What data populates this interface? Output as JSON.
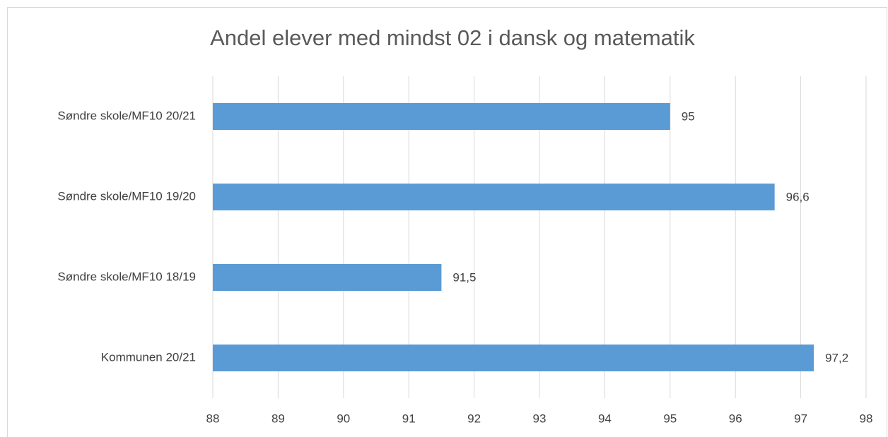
{
  "chart_data": {
    "type": "bar",
    "orientation": "horizontal",
    "title": "Andel elever med mindst 02 i dansk og matematik",
    "categories": [
      "Søndre skole/MF10 20/21",
      "Søndre skole/MF10 19/20",
      "Søndre skole/MF10 18/19",
      "Kommunen 20/21"
    ],
    "values": [
      95,
      96.6,
      91.5,
      97.2
    ],
    "value_labels": [
      "95",
      "96,6",
      "91,5",
      "97,2"
    ],
    "color": "#5b9bd5",
    "xlim": [
      88,
      98
    ],
    "xticks": [
      88,
      89,
      90,
      91,
      92,
      93,
      94,
      95,
      96,
      97,
      98
    ],
    "grid": true
  }
}
